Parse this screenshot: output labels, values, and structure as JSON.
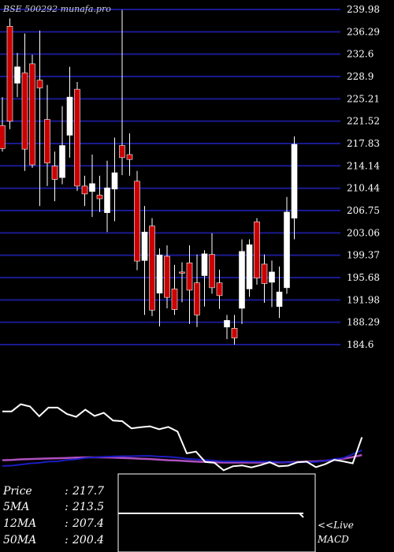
{
  "watermark": "BSE 500292 munafa.pro",
  "colors": {
    "background": "#000000",
    "grid": "#1a1a90",
    "up": "#ffffff",
    "down": "#cc0000",
    "text": "#ffffff",
    "ma_short": "#ffffff",
    "ma_mid": "#1c1cc0",
    "ma_long": "#b050c0"
  },
  "chart_data": {
    "type": "candlestick",
    "price_ticks": [
      "239.98",
      "236.29",
      "232.6",
      "228.9",
      "225.21",
      "221.52",
      "217.83",
      "214.14",
      "210.44",
      "206.75",
      "203.06",
      "199.37",
      "195.68",
      "191.98",
      "188.29",
      "184.6"
    ],
    "ylim": [
      184.6,
      239.98
    ],
    "candles": [
      {
        "o": 220.8,
        "h": 225.5,
        "l": 216.5,
        "c": 217.0
      },
      {
        "o": 237.2,
        "h": 238.5,
        "l": 220.2,
        "c": 221.5
      },
      {
        "o": 227.8,
        "h": 232.8,
        "l": 225.5,
        "c": 230.5
      },
      {
        "o": 229.5,
        "h": 236.0,
        "l": 213.3,
        "c": 216.9
      },
      {
        "o": 231.0,
        "h": 232.5,
        "l": 213.8,
        "c": 214.3
      },
      {
        "o": 228.3,
        "h": 236.5,
        "l": 207.5,
        "c": 227.0
      },
      {
        "o": 221.8,
        "h": 227.5,
        "l": 210.8,
        "c": 214.6
      },
      {
        "o": 214.1,
        "h": 216.5,
        "l": 208.3,
        "c": 211.9
      },
      {
        "o": 212.2,
        "h": 224.0,
        "l": 211.1,
        "c": 217.5
      },
      {
        "o": 219.2,
        "h": 230.5,
        "l": 215.5,
        "c": 225.5
      },
      {
        "o": 226.8,
        "h": 228.0,
        "l": 210.0,
        "c": 210.8
      },
      {
        "o": 210.8,
        "h": 212.5,
        "l": 207.5,
        "c": 209.5
      },
      {
        "o": 209.9,
        "h": 216.0,
        "l": 205.7,
        "c": 211.2
      },
      {
        "o": 209.3,
        "h": 212.5,
        "l": 206.5,
        "c": 208.7
      },
      {
        "o": 206.4,
        "h": 215.0,
        "l": 203.2,
        "c": 210.5
      },
      {
        "o": 210.3,
        "h": 218.8,
        "l": 205.0,
        "c": 213.0
      },
      {
        "o": 217.5,
        "h": 239.9,
        "l": 212.6,
        "c": 215.5
      },
      {
        "o": 216.0,
        "h": 219.5,
        "l": 212.5,
        "c": 215.2
      },
      {
        "o": 211.6,
        "h": 213.3,
        "l": 196.9,
        "c": 198.4
      },
      {
        "o": 198.5,
        "h": 207.5,
        "l": 189.5,
        "c": 203.2
      },
      {
        "o": 204.2,
        "h": 205.5,
        "l": 189.3,
        "c": 190.3
      },
      {
        "o": 193.1,
        "h": 200.5,
        "l": 187.6,
        "c": 199.4
      },
      {
        "o": 199.2,
        "h": 201.0,
        "l": 190.6,
        "c": 192.4
      },
      {
        "o": 193.8,
        "h": 197.8,
        "l": 189.5,
        "c": 190.4
      },
      {
        "o": 196.6,
        "h": 198.2,
        "l": 191.6,
        "c": 196.5
      },
      {
        "o": 198.1,
        "h": 201.0,
        "l": 188.0,
        "c": 193.6
      },
      {
        "o": 194.8,
        "h": 199.5,
        "l": 187.5,
        "c": 189.5
      },
      {
        "o": 196.0,
        "h": 200.2,
        "l": 190.9,
        "c": 199.6
      },
      {
        "o": 199.5,
        "h": 203.0,
        "l": 193.0,
        "c": 194.0
      },
      {
        "o": 194.8,
        "h": 197.0,
        "l": 190.5,
        "c": 192.7
      },
      {
        "o": 187.5,
        "h": 189.5,
        "l": 185.5,
        "c": 188.6
      },
      {
        "o": 187.3,
        "h": 189.5,
        "l": 184.6,
        "c": 185.7
      },
      {
        "o": 190.6,
        "h": 202.0,
        "l": 188.0,
        "c": 200.0
      },
      {
        "o": 193.8,
        "h": 202.0,
        "l": 192.5,
        "c": 201.1
      },
      {
        "o": 204.9,
        "h": 205.5,
        "l": 194.5,
        "c": 195.6
      },
      {
        "o": 197.9,
        "h": 199.5,
        "l": 191.5,
        "c": 194.7
      },
      {
        "o": 194.9,
        "h": 198.5,
        "l": 190.8,
        "c": 196.6
      },
      {
        "o": 190.9,
        "h": 197.5,
        "l": 189.0,
        "c": 193.3
      },
      {
        "o": 194.0,
        "h": 209.0,
        "l": 193.0,
        "c": 206.5
      },
      {
        "o": 205.5,
        "h": 219.0,
        "l": 202.0,
        "c": 217.7
      }
    ],
    "indicator": {
      "series_short": [
        204.5,
        204.5,
        207.0,
        206.2,
        202.8,
        205.8,
        205.8,
        203.6,
        202.6,
        205.1,
        202.9,
        204.0,
        201.3,
        201.1,
        198.6,
        199.0,
        199.3,
        198.3,
        199.1,
        197.5,
        189.9,
        190.5,
        186.9,
        186.6,
        184.0,
        185.4,
        185.7,
        185.0,
        185.8,
        186.8,
        185.4,
        185.6,
        186.8,
        187.0,
        185.1,
        186.1,
        187.6,
        187.1,
        186.4,
        195.5
      ],
      "series_mid": [
        185.5,
        185.6,
        186.0,
        186.4,
        186.6,
        187.0,
        187.1,
        187.6,
        187.8,
        188.3,
        188.5,
        188.7,
        188.8,
        188.9,
        188.9,
        189.0,
        189.0,
        188.8,
        188.7,
        188.4,
        188.0,
        187.8,
        187.6,
        187.3,
        187.1,
        187.1,
        187.1,
        187.0,
        187.0,
        187.0,
        186.9,
        186.7,
        186.8,
        186.8,
        186.9,
        187.3,
        187.9,
        188.3,
        189.6,
        191.0
      ],
      "series_long": [
        187.5,
        187.6,
        187.8,
        187.9,
        188.0,
        188.1,
        188.2,
        188.3,
        188.4,
        188.5,
        188.5,
        188.5,
        188.4,
        188.3,
        188.2,
        188.0,
        187.9,
        187.7,
        187.5,
        187.4,
        187.2,
        187.0,
        186.9,
        186.8,
        186.7,
        186.7,
        186.7,
        186.7,
        186.7,
        186.8,
        186.8,
        186.8,
        186.9,
        187.0,
        187.1,
        187.3,
        187.6,
        188.0,
        188.6,
        189.3
      ]
    },
    "price_label": "Price",
    "price_value": "217.7",
    "ma5_label": "5MA",
    "ma5_value": "213.5",
    "ma12_label": "12MA",
    "ma12_value": "207.4",
    "ma50_label": "50MA",
    "ma50_value": "200.4",
    "live_label": "<<Live",
    "macd_label": "MACD"
  }
}
